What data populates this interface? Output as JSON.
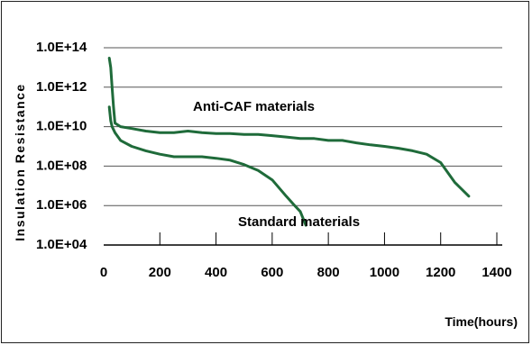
{
  "chart_data": {
    "type": "line",
    "title": "",
    "xlabel": "Time(hours)",
    "ylabel": "Insulation Resistance",
    "xlim": [
      0,
      1400
    ],
    "ylim_log10": [
      4,
      14
    ],
    "y_scale": "log",
    "grid": "horizontal",
    "x_ticks": [
      "0",
      "200",
      "400",
      "600",
      "800",
      "1000",
      "1200",
      "1400"
    ],
    "y_ticks": [
      "1.0E+14",
      "1.0E+12",
      "1.0E+10",
      "1.0E+08",
      "1.0E+06",
      "1.0E+04"
    ],
    "series_color": "#1f6b3a",
    "annotations": [
      {
        "text": "Anti-CAF materials"
      },
      {
        "text": "Standard materials"
      }
    ],
    "series": [
      {
        "name": "Anti-CAF materials",
        "x": [
          20,
          25,
          30,
          35,
          40,
          60,
          100,
          150,
          200,
          250,
          300,
          350,
          400,
          450,
          500,
          550,
          600,
          650,
          700,
          750,
          800,
          850,
          900,
          950,
          1000,
          1050,
          1100,
          1150,
          1200,
          1250,
          1300
        ],
        "y": [
          30000000000000.0,
          10000000000000.0,
          1000000000000.0,
          100000000000.0,
          15000000000.0,
          10000000000.0,
          8000000000.0,
          6000000000.0,
          5000000000.0,
          5000000000.0,
          6000000000.0,
          5000000000.0,
          4500000000.0,
          4500000000.0,
          4000000000.0,
          4000000000.0,
          3500000000.0,
          3000000000.0,
          2500000000.0,
          2500000000.0,
          2000000000.0,
          2000000000.0,
          1500000000.0,
          1200000000.0,
          1000000000.0,
          800000000.0,
          600000000.0,
          400000000.0,
          150000000.0,
          15000000.0,
          3000000.0
        ]
      },
      {
        "name": "Standard materials",
        "x": [
          20,
          25,
          30,
          40,
          60,
          100,
          150,
          200,
          250,
          300,
          350,
          400,
          450,
          500,
          550,
          600,
          650,
          680,
          700,
          720
        ],
        "y": [
          100000000000.0,
          20000000000.0,
          10000000000.0,
          5000000000.0,
          2000000000.0,
          1000000000.0,
          600000000.0,
          400000000.0,
          300000000.0,
          300000000.0,
          300000000.0,
          250000000.0,
          200000000.0,
          120000000.0,
          60000000.0,
          20000000.0,
          3000000.0,
          1000000.0,
          500000.0,
          100000.0
        ]
      }
    ]
  }
}
